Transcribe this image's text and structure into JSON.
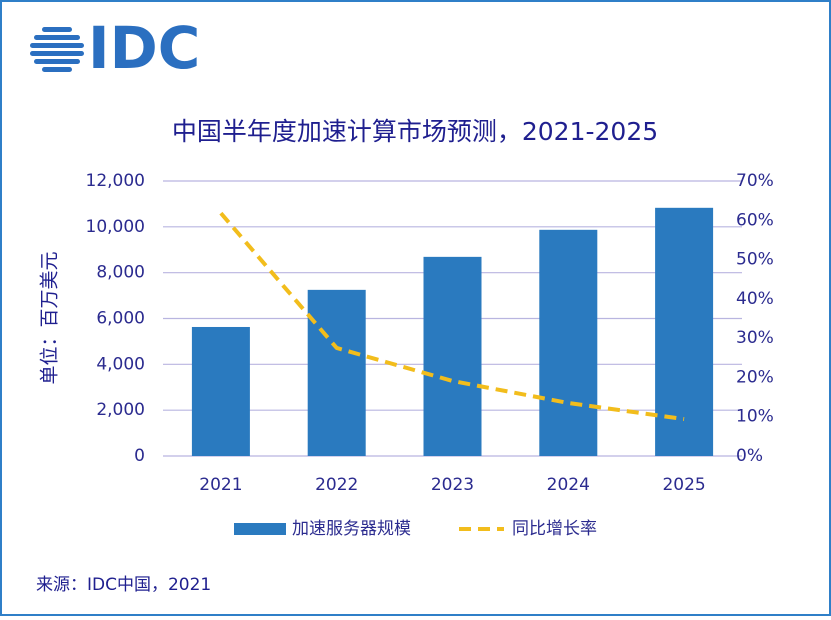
{
  "logo": "IDC",
  "chart_data": {
    "type": "bar-line",
    "title": "中国半年度加速计算市场预测，2021-2025",
    "y_label": "单位：百万美元",
    "categories": [
      "2021",
      "2022",
      "2023",
      "2024",
      "2025"
    ],
    "series": [
      {
        "name": "加速服务器规模",
        "type": "bar",
        "color": "#2a7abf",
        "values": [
          5630,
          7250,
          8690,
          9870,
          10830
        ]
      },
      {
        "name": "同比增长率",
        "type": "line",
        "axis": "y2",
        "color": "#f2bd1c",
        "values": [
          61.8,
          27.5,
          19.1,
          13.5,
          9.4
        ]
      }
    ],
    "ylim": [
      0,
      12000
    ],
    "yticks": [
      0,
      {
        "value": 2000,
        "label": "2,000"
      },
      {
        "value": 4000,
        "label": "4,000"
      },
      {
        "value": 6000,
        "label": "6,000"
      },
      {
        "value": 8000,
        "label": "8,000"
      },
      {
        "value": 10000,
        "label": "10,000"
      },
      {
        "value": 12000,
        "label": "12,000"
      }
    ],
    "y2lim": [
      0,
      70
    ],
    "y2ticks": [
      {
        "value": 0,
        "label": "0%"
      },
      {
        "value": 10,
        "label": "10%"
      },
      {
        "value": 20,
        "label": "20%"
      },
      {
        "value": 30,
        "label": "30%"
      },
      {
        "value": 40,
        "label": "40%"
      },
      {
        "value": 50,
        "label": "50%"
      },
      {
        "value": 60,
        "label": "60%"
      },
      {
        "value": 70,
        "label": "70%"
      }
    ],
    "grid": true,
    "legend": "bottom",
    "source": "来源：IDC中国，2021"
  }
}
